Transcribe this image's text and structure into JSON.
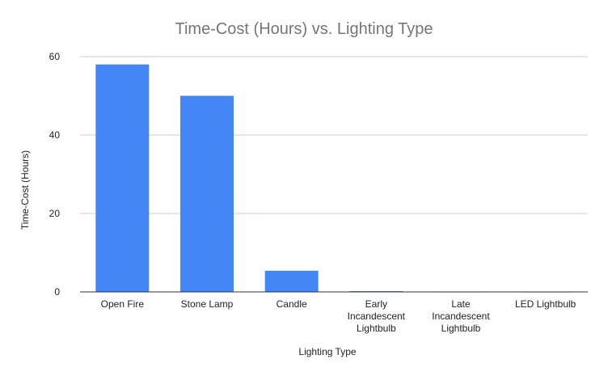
{
  "chart_data": {
    "type": "bar",
    "title": "Time-Cost (Hours) vs. Lighting Type",
    "xlabel": "Lighting Type",
    "ylabel": "Time-Cost (Hours)",
    "categories": [
      [
        "Open Fire"
      ],
      [
        "Stone Lamp"
      ],
      [
        "Candle"
      ],
      [
        "Early",
        "Incandescent",
        "Lightbulb"
      ],
      [
        "Late",
        "Incandescent",
        "Lightbulb"
      ],
      [
        "LED Lightbulb"
      ]
    ],
    "values": [
      58,
      50,
      5.4,
      0.2,
      0.01,
      0.001
    ],
    "ylim": [
      0,
      60
    ],
    "yticks": [
      "0",
      "20",
      "40",
      "60"
    ],
    "grid": true,
    "legend": "none",
    "colors": {
      "bar": "#4285f4",
      "title": "#757575"
    }
  }
}
